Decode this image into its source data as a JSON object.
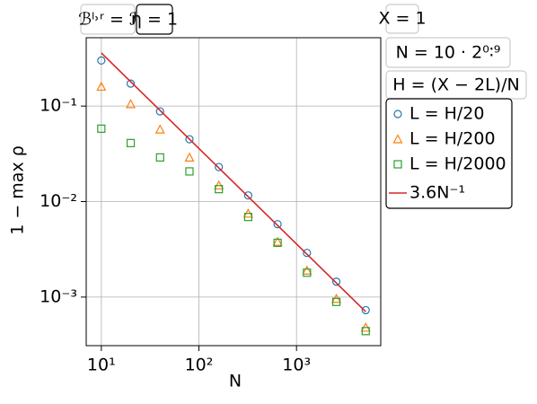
{
  "chart_data": {
    "type": "scatter",
    "xlabel": "N",
    "ylabel": "1 − max ρ",
    "xscale": "log",
    "yscale": "log",
    "grid": true,
    "xlim": [
      7,
      7300
    ],
    "ylim": [
      0.00031,
      0.52
    ],
    "xticks": [
      {
        "value": 10,
        "label": "10¹"
      },
      {
        "value": 100,
        "label": "10²"
      },
      {
        "value": 1000,
        "label": "10³"
      }
    ],
    "yticks": [
      {
        "value": 0.001,
        "label": "10⁻³"
      },
      {
        "value": 0.01,
        "label": "10⁻²"
      },
      {
        "value": 0.1,
        "label": "10⁻¹"
      }
    ],
    "annotations": [
      "ℬˡ˒ʳ = ℐ",
      "η = 1",
      "X = 1",
      "N = 10 · 2⁰∶⁹",
      "H = (X − 2L)/N"
    ],
    "legend": "right",
    "series": [
      {
        "name": "L = H/20",
        "color": "#1f77b4",
        "marker": "circle",
        "x": [
          10,
          20,
          40,
          80,
          160,
          320,
          640,
          1280,
          2560,
          5120
        ],
        "values": [
          0.3,
          0.172,
          0.088,
          0.045,
          0.023,
          0.0116,
          0.0058,
          0.0029,
          0.00145,
          0.00073
        ]
      },
      {
        "name": "L = H/200",
        "color": "#ff7f0e",
        "marker": "triangle",
        "x": [
          10,
          20,
          40,
          80,
          160,
          320,
          640,
          1280,
          2560,
          5120
        ],
        "values": [
          0.16,
          0.105,
          0.057,
          0.029,
          0.0148,
          0.0075,
          0.0038,
          0.0019,
          0.00096,
          0.00048
        ]
      },
      {
        "name": "L = H/2000",
        "color": "#2ca02c",
        "marker": "square",
        "x": [
          10,
          20,
          40,
          80,
          160,
          320,
          640,
          1280,
          2560,
          5120
        ],
        "values": [
          0.058,
          0.041,
          0.029,
          0.0207,
          0.0135,
          0.0069,
          0.0037,
          0.0018,
          0.00089,
          0.00044
        ]
      },
      {
        "name": "3.6N⁻¹",
        "color": "#d62728",
        "marker": "line",
        "x": [
          10,
          5120
        ],
        "values": [
          0.36,
          0.000703
        ]
      }
    ]
  }
}
